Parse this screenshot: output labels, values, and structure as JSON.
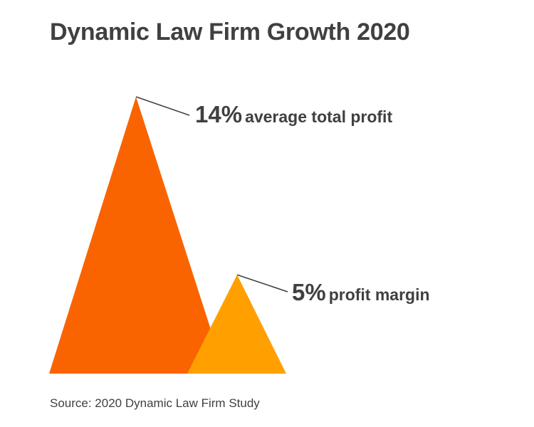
{
  "title": "Dynamic Law Firm Growth 2020",
  "source": "Source: 2020 Dynamic Law Firm Study",
  "chart_data": {
    "type": "bar",
    "title": "Dynamic Law Firm Growth 2020",
    "categories": [
      "average total profit",
      "profit margin"
    ],
    "values": [
      14,
      5
    ],
    "unit": "%",
    "labels": [
      {
        "value": "14%",
        "text": "average total profit",
        "color": "#F96400"
      },
      {
        "value": "5%",
        "text": "profit margin",
        "color": "#FFA000"
      }
    ],
    "grid": false
  }
}
